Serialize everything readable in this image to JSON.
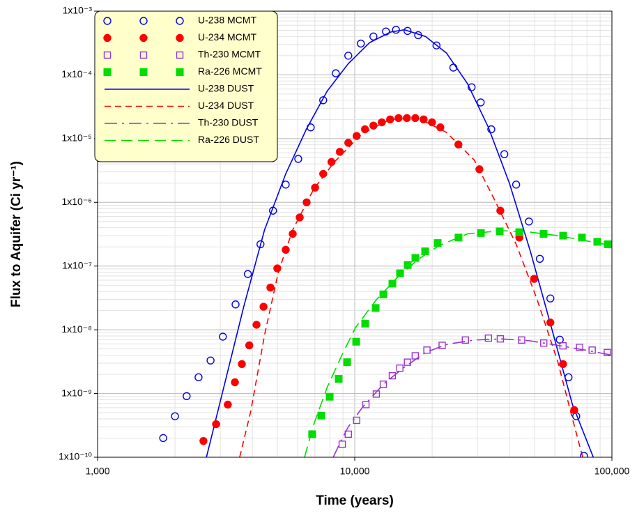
{
  "chart_data": {
    "type": "scatter",
    "x_label": "Time (years)",
    "y_label": "Flux to Aquifer (Ci yr⁻¹)",
    "x_log": true,
    "y_log": true,
    "grid": true,
    "minor_grid": true,
    "legend": "upper left",
    "legend_background": "#ffffcc",
    "xlim": [
      1000,
      100000
    ],
    "ylim": [
      1e-10,
      0.001
    ],
    "xticks": [
      {
        "value": 1000,
        "label": "1,000"
      },
      {
        "value": 10000,
        "label": "10,000"
      },
      {
        "value": 100000,
        "label": "100,000"
      }
    ],
    "yticks": [
      {
        "value": 1e-10,
        "label": "1x10⁻¹⁰"
      },
      {
        "value": 1e-09,
        "label": "1x10⁻⁹"
      },
      {
        "value": 1e-08,
        "label": "1x10⁻⁸"
      },
      {
        "value": 1e-07,
        "label": "1x10⁻⁷"
      },
      {
        "value": 1e-06,
        "label": "1x10⁻⁶"
      },
      {
        "value": 1e-05,
        "label": "1x10⁻⁵"
      },
      {
        "value": 0.0001,
        "label": "1x10⁻⁴"
      },
      {
        "value": 0.001,
        "label": "1x10⁻³"
      }
    ],
    "series": [
      {
        "name": "U-238 MCMT",
        "color": "#0000ee",
        "marker": "circle-open",
        "x": [
          1800,
          2000,
          2220,
          2470,
          2750,
          3070,
          3440,
          3840,
          4300,
          4810,
          5390,
          6030,
          6740,
          7540,
          8440,
          9440,
          10560,
          11820,
          13220,
          14470,
          16040,
          17650,
          20790,
          24180,
          28480,
          30880,
          33960,
          38170,
          42430,
          47570,
          52440,
          57640,
          62700,
          67820,
          72660,
          77880
        ],
        "values": [
          2e-10,
          4.4e-10,
          9.1e-10,
          1.8e-09,
          3.3e-09,
          7.8e-09,
          2.5e-08,
          7.5e-08,
          2.2e-07,
          7.4e-07,
          1.9e-06,
          4.8e-06,
          1.5e-05,
          4e-05,
          0.000106,
          0.0002,
          0.00031,
          0.0004,
          0.00048,
          0.00051,
          0.00049,
          0.00042,
          0.00029,
          0.00013,
          6.4e-05,
          3.7e-05,
          1.4e-05,
          5.7e-06,
          1.9e-06,
          5e-07,
          1.3e-07,
          3.1e-08,
          7e-09,
          1.8e-09,
          4.4e-10,
          1.05e-10
        ]
      },
      {
        "name": "U-234 MCMT",
        "color": "#ff0000",
        "marker": "circle",
        "x": [
          2580,
          2890,
          3210,
          3420,
          3640,
          3890,
          4150,
          4420,
          4700,
          5000,
          5390,
          5740,
          6110,
          6500,
          7010,
          7540,
          8120,
          8750,
          9440,
          10170,
          10960,
          11820,
          12740,
          13730,
          14800,
          15950,
          17190,
          18530,
          19970,
          21520,
          25300,
          30530,
          36830,
          43660,
          49860,
          57640,
          64540,
          71390
        ],
        "values": [
          1.8e-10,
          3.3e-10,
          6.7e-10,
          1.5e-09,
          2.9e-09,
          5.7e-09,
          1.2e-08,
          2.3e-08,
          4.6e-08,
          9.2e-08,
          1.8e-07,
          3.2e-07,
          5.8e-07,
          1e-06,
          1.7e-06,
          2.8e-06,
          4.3e-06,
          6.2e-06,
          8.6e-06,
          1.1e-05,
          1.4e-05,
          1.6e-05,
          1.8e-05,
          2e-05,
          2.1e-05,
          2.1e-05,
          2.1e-05,
          2e-05,
          1.8e-05,
          1.5e-05,
          8.1e-06,
          3.3e-06,
          7.4e-07,
          2.8e-07,
          6.3e-08,
          1.3e-08,
          2.9e-09,
          5.5e-10
        ]
      },
      {
        "name": "Th-230 MCMT",
        "color": "#9933cc",
        "marker": "square-open",
        "x": [
          8940,
          9440,
          10170,
          11050,
          12130,
          12920,
          14000,
          14970,
          16040,
          17190,
          19090,
          21880,
          26930,
          33100,
          36830,
          44550,
          54330,
          64540,
          74880,
          83790,
          96000
        ],
        "values": [
          1.6e-10,
          2.3e-10,
          3.8e-10,
          6.7e-10,
          9.8e-10,
          1.4e-09,
          1.9e-09,
          2.5e-09,
          3.1e-09,
          3.9e-09,
          4.8e-09,
          5.7e-09,
          6.9e-09,
          7.4e-09,
          7.2e-09,
          6.9e-09,
          6.2e-09,
          5.6e-09,
          5.3e-09,
          4.8e-09,
          4.4e-09
        ]
      },
      {
        "name": "Ra-226 MCMT",
        "color": "#00dd00",
        "marker": "square",
        "x": [
          6830,
          7410,
          7990,
          8660,
          9340,
          10130,
          10980,
          12060,
          12920,
          14010,
          15010,
          16070,
          17210,
          18780,
          21010,
          25330,
          30940,
          36620,
          43620,
          54250,
          64620,
          76460,
          87730,
          96320
        ],
        "values": [
          2.3e-10,
          4.5e-10,
          8.9e-10,
          1.7e-09,
          3.1e-09,
          6.5e-09,
          1.25e-08,
          2.2e-08,
          3.6e-08,
          5.3e-08,
          7.7e-08,
          1.04e-07,
          1.34e-07,
          1.7e-07,
          2.3e-07,
          2.8e-07,
          3.3e-07,
          3.5e-07,
          3.4e-07,
          3.2e-07,
          3e-07,
          2.8e-07,
          2.4e-07,
          2.2e-07
        ]
      },
      {
        "name": "U-238 DUST",
        "color": "#0000ee",
        "line": "solid",
        "x": [
          2650,
          3070,
          3700,
          4460,
          5390,
          6480,
          7820,
          9440,
          11420,
          13780,
          15610,
          18850,
          22730,
          27430,
          33100,
          39940,
          48200,
          58160,
          70170,
          84670
        ],
        "values": [
          1e-10,
          1.1e-09,
          2.3e-08,
          3.7e-07,
          2.8e-06,
          1.4e-05,
          5.6e-05,
          0.00015,
          0.00032,
          0.00047,
          0.00051,
          0.0004,
          0.00022,
          7.3e-05,
          1.5e-05,
          2e-06,
          1.7e-07,
          1.1e-08,
          6.8e-10,
          1e-10
        ]
      },
      {
        "name": "U-234 DUST",
        "color": "#ff0000",
        "line": "dashed",
        "x": [
          3570,
          3940,
          4460,
          5050,
          5740,
          6920,
          8330,
          10690,
          13730,
          17650,
          22730,
          29180,
          34940,
          42430,
          51150,
          61650,
          70170,
          76970
        ],
        "values": [
          1e-10,
          5.2e-10,
          8.3e-09,
          8.1e-08,
          3.7e-07,
          1.6e-06,
          4.3e-06,
          1.2e-05,
          2e-05,
          2.1e-05,
          1.25e-05,
          4.6e-06,
          1.1e-06,
          2.2e-07,
          3e-08,
          3.1e-09,
          4.1e-10,
          1e-10
        ]
      },
      {
        "name": "Th-230 DUST",
        "color": "#9933cc",
        "line": "dash-dot",
        "x": [
          8250,
          8890,
          9440,
          10690,
          12920,
          15610,
          18850,
          22730,
          29180,
          37290,
          48200,
          61650,
          78880,
          100000
        ],
        "values": [
          1e-10,
          1.9e-10,
          3e-10,
          6e-10,
          1.4e-09,
          2.6e-09,
          4.4e-09,
          5.9e-09,
          6.9e-09,
          7.2e-09,
          6.7e-09,
          5.7e-09,
          4.8e-09,
          4e-09
        ]
      },
      {
        "name": "Ra-226 DUST",
        "color": "#00dd00",
        "line": "long-dash",
        "x": [
          6380,
          6910,
          7820,
          8890,
          10060,
          12130,
          14630,
          17650,
          21290,
          27430,
          37290,
          48200,
          61650,
          78880,
          100000
        ],
        "values": [
          1e-10,
          3.2e-10,
          1.26e-09,
          3.9e-09,
          1.08e-08,
          2.95e-08,
          6.6e-08,
          1.27e-07,
          2.1e-07,
          3.2e-07,
          3.6e-07,
          3.4e-07,
          3e-07,
          2.5e-07,
          2.1e-07
        ]
      }
    ]
  }
}
